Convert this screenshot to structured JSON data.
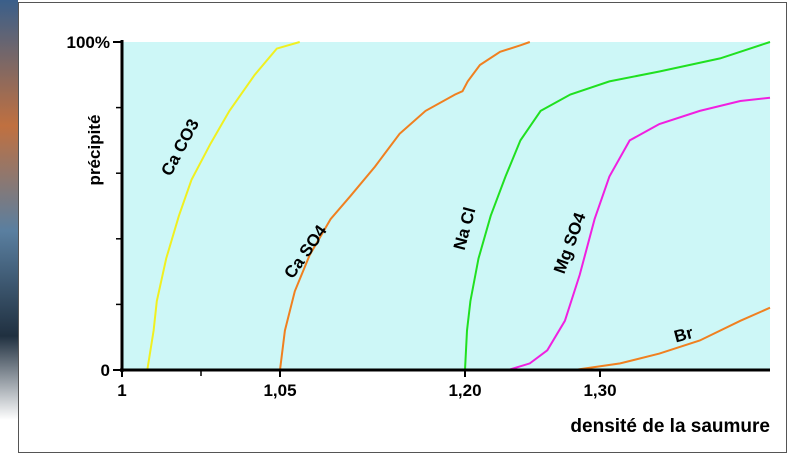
{
  "chart_data": {
    "type": "line",
    "ylabel": "précipité",
    "xlabel": "densité de la saumure",
    "xlim": [
      1,
      1.426
    ],
    "xticks": [
      1,
      {
        "value": 1.05,
        "label": "1,05"
      },
      {
        "value": 1.2,
        "label": "1,20"
      },
      {
        "value": 1.3,
        "label": "1,30"
      }
    ],
    "xminor_ticks": [
      1.025
    ],
    "ylim": [
      0,
      100
    ],
    "yticks": [
      0,
      {
        "value": 100,
        "label": "100%"
      }
    ],
    "yminor_ticks": [
      20,
      40,
      60,
      80
    ],
    "background": "#cdf7f7",
    "series": [
      {
        "name": "Ca CO3",
        "color": "#f0f020",
        "x": [
          1.008,
          1.01,
          1.011,
          1.014,
          1.018,
          1.022,
          1.028,
          1.034,
          1.042,
          1.049,
          1.066
        ],
        "values": [
          0,
          12,
          21,
          34,
          47,
          58,
          69,
          79,
          90,
          98,
          100
        ]
      },
      {
        "name": "Ca SO4",
        "color": "#f08020",
        "x": [
          1.05,
          1.054,
          1.062,
          1.074,
          1.091,
          1.107,
          1.127,
          1.147,
          1.168,
          1.192,
          1.198,
          1.202,
          1.211,
          1.226,
          1.241,
          1.248
        ],
        "values": [
          0,
          12,
          24,
          35,
          46,
          53,
          62,
          72,
          79,
          84,
          85,
          88,
          93,
          97,
          99,
          100
        ]
      },
      {
        "name": "Na Cl",
        "color": "#20e020",
        "x": [
          1.2,
          1.2015,
          1.204,
          1.21,
          1.219,
          1.23,
          1.241,
          1.256,
          1.278,
          1.307,
          1.344,
          1.389,
          1.426
        ],
        "values": [
          0,
          12,
          21,
          34,
          47,
          59,
          70,
          79,
          84,
          88,
          91,
          95,
          100
        ]
      },
      {
        "name": "Mg SO4",
        "color": "#f020e0",
        "x": [
          1.232,
          1.248,
          1.261,
          1.274,
          1.285,
          1.296,
          1.307,
          1.322,
          1.344,
          1.374,
          1.404,
          1.426
        ],
        "values": [
          0,
          2,
          6,
          15,
          29,
          46,
          59,
          70,
          75,
          79,
          82,
          83
        ]
      },
      {
        "name": "Br",
        "color": "#f08020",
        "x": [
          1.281,
          1.315,
          1.344,
          1.374,
          1.404,
          1.426
        ],
        "values": [
          0,
          2,
          5,
          9,
          15,
          19
        ]
      }
    ]
  }
}
